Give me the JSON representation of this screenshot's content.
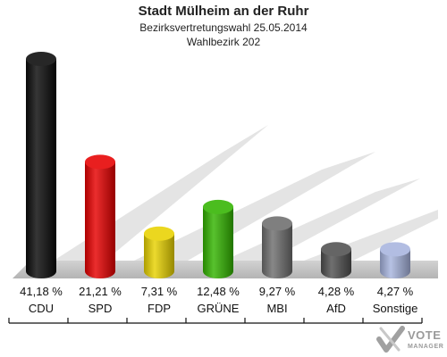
{
  "header": {
    "title": "Stadt Mülheim an der Ruhr",
    "subtitle": "Bezirksvertretungswahl 25.05.2014",
    "district": "Wahlbezirk 202"
  },
  "logo": {
    "line1": "VOTE",
    "line2": "MANAGER"
  },
  "chart_data": {
    "type": "bar",
    "title": "Stadt Mülheim an der Ruhr",
    "subtitle": "Bezirksvertretungswahl 25.05.2014 / Wahlbezirk 202",
    "categories": [
      "CDU",
      "SPD",
      "FDP",
      "GRÜNE",
      "MBI",
      "AfD",
      "Sonstige"
    ],
    "values": [
      41.18,
      21.21,
      7.31,
      12.48,
      9.27,
      4.28,
      4.27
    ],
    "value_labels": [
      "41,18 %",
      "21,21 %",
      "7,31 %",
      "12,48 %",
      "9,27 %",
      "4,28 %",
      "4,27 %"
    ],
    "colors": [
      "#0a0a0a",
      "#e60000",
      "#e8d200",
      "#33b400",
      "#6e6e6e",
      "#505050",
      "#a7b4de"
    ],
    "unit": "%",
    "grid": false,
    "legend": "none"
  }
}
